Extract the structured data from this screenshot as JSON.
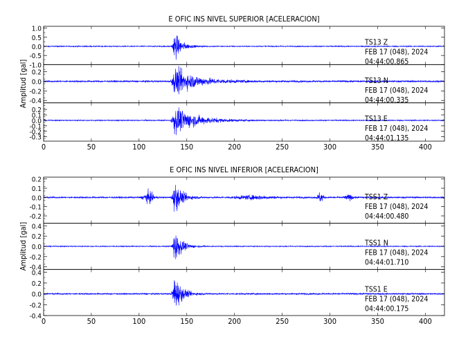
{
  "chart_data": [
    {
      "type": "line",
      "title": "E OFIC INS NIVEL SUPERIOR [ACELERACION]",
      "ylabel": "Amplitud [gal]",
      "xlabel": "",
      "xlim": [
        0,
        420
      ],
      "x_ticks": [
        0,
        50,
        100,
        150,
        200,
        250,
        300,
        350,
        400
      ],
      "line_color": "#0000ff",
      "traces": [
        {
          "station": "TS13",
          "component": "Z",
          "date": "FEB 17 (048), 2024",
          "time": "04:44:00.865",
          "ylim": [
            -1.0,
            1.1
          ],
          "y_ticks": [
            1.0,
            0.5,
            0.0,
            -0.5,
            -1.0
          ],
          "y_tick_labels": [
            "1.0",
            "0.5",
            "0.0",
            "-0.5",
            "-1.0"
          ],
          "noise": 0.03,
          "peak_time": 137,
          "peak_amp": 0.9,
          "shape": "sharp"
        },
        {
          "station": "TS13",
          "component": "N",
          "date": "FEB 17 (048), 2024",
          "time": "04:44:00.335",
          "ylim": [
            -0.45,
            0.35
          ],
          "y_ticks": [
            0.2,
            0.0,
            -0.2,
            -0.4
          ],
          "y_tick_labels": [
            "0.2",
            "0.0",
            "-0.2",
            "-0.4"
          ],
          "noise": 0.02,
          "peak_time": 137,
          "peak_amp": 0.32,
          "shape": "long"
        },
        {
          "station": "TS13",
          "component": "E",
          "date": "FEB 17 (048), 2024",
          "time": "04:44:01.135",
          "ylim": [
            -0.38,
            0.32
          ],
          "y_ticks": [
            0.2,
            0.1,
            0.0,
            -0.1,
            -0.2,
            -0.3
          ],
          "y_tick_labels": [
            "0.2",
            "0.1",
            "0.0",
            "-0.1",
            "-0.2",
            "-0.3"
          ],
          "noise": 0.01,
          "peak_time": 137,
          "peak_amp": 0.28,
          "shape": "long"
        }
      ]
    },
    {
      "type": "line",
      "title": "E OFIC INS NIVEL INFERIOR [ACELERACION]",
      "ylabel": "Amplitud [gal]",
      "xlabel": "",
      "xlim": [
        0,
        420
      ],
      "x_ticks": [
        0,
        50,
        100,
        150,
        200,
        250,
        300,
        350,
        400
      ],
      "line_color": "#0000ff",
      "traces": [
        {
          "station": "TSS1",
          "component": "Z",
          "date": "FEB 17 (048), 2024",
          "time": "04:44:00.480",
          "ylim": [
            -0.28,
            0.22
          ],
          "y_ticks": [
            0.2,
            0.1,
            0.0,
            -0.1,
            -0.2
          ],
          "y_tick_labels": [
            "0.2",
            "0.1",
            "0.0",
            "-0.1",
            "-0.2"
          ],
          "noise": 0.01,
          "peak_time": 137,
          "peak_amp": 0.2,
          "shape": "multi"
        },
        {
          "station": "TSS1",
          "component": "N",
          "date": "FEB 17 (048), 2024",
          "time": "04:44:01.710",
          "ylim": [
            -0.45,
            0.45
          ],
          "y_ticks": [
            0.4,
            0.2,
            0.0,
            -0.2,
            -0.4
          ],
          "y_tick_labels": [
            "0.4",
            "0.2",
            "0.0",
            "-0.2",
            "-0.4"
          ],
          "noise": 0.01,
          "peak_time": 137,
          "peak_amp": 0.38,
          "shape": "sharp"
        },
        {
          "station": "TSS1",
          "component": "E",
          "date": "FEB 17 (048), 2024",
          "time": "04:44:00.175",
          "ylim": [
            -0.4,
            0.45
          ],
          "y_ticks": [
            0.4,
            0.2,
            0.0,
            -0.2,
            -0.4
          ],
          "y_tick_labels": [
            "0.4",
            "0.2",
            "0.0",
            "-0.2",
            "-0.4"
          ],
          "noise": 0.015,
          "peak_time": 137,
          "peak_amp": 0.4,
          "shape": "sharp"
        }
      ]
    }
  ]
}
